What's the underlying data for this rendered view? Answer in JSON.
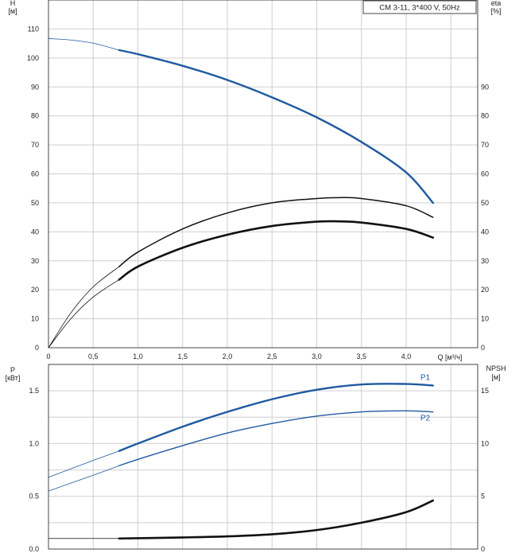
{
  "chart_data": [
    {
      "type": "line",
      "title": "CM 3-11, 3*400 V, 50Hz",
      "ylabel_left": "H",
      "ylabel_left_unit": "[м]",
      "ylabel_right": "eta",
      "ylabel_right_unit": "[%]",
      "xlabel": "Q [м³/ч]",
      "xlim": [
        0,
        4.8
      ],
      "ylim_left": [
        0,
        120
      ],
      "ylim_right": [
        0,
        120
      ],
      "x_ticks": [
        "0",
        "0,5",
        "1,0",
        "1,5",
        "2,0",
        "2,5",
        "3,0",
        "3,5",
        "4,0"
      ],
      "x_tick_values": [
        0,
        0.5,
        1.0,
        1.5,
        2.0,
        2.5,
        3.0,
        3.5,
        4.0
      ],
      "y_ticks_left": [
        "0",
        "10",
        "20",
        "30",
        "40",
        "50",
        "60",
        "70",
        "80",
        "90",
        "100",
        "110"
      ],
      "y_ticks_right": [
        "0",
        "10",
        "20",
        "30",
        "40",
        "50",
        "60",
        "70",
        "80",
        "90"
      ],
      "grid": true,
      "series": [
        {
          "key": "H",
          "color": "#1f5aa0",
          "x": [
            0,
            0.25,
            0.5,
            0.79,
            1.0,
            1.5,
            2.0,
            2.5,
            3.0,
            3.5,
            4.0,
            4.3
          ],
          "y": [
            106.7,
            106.2,
            105.1,
            102.7,
            101.3,
            97.3,
            92.4,
            86.4,
            79.5,
            71.0,
            60.5,
            50.0
          ],
          "solid_from": 0.79
        },
        {
          "key": "eta_hydraulic",
          "color": "#111111",
          "x": [
            0,
            0.25,
            0.5,
            0.79,
            1.0,
            1.5,
            2.0,
            2.5,
            3.0,
            3.25,
            3.5,
            4.0,
            4.3
          ],
          "y": [
            0,
            12,
            21,
            28,
            33,
            41,
            46.5,
            50,
            51.5,
            51.8,
            51.5,
            49,
            45
          ],
          "solid_from": 0.79
        },
        {
          "key": "eta_total",
          "color": "#111111",
          "x": [
            0,
            0.25,
            0.5,
            0.79,
            1.0,
            1.5,
            2.0,
            2.5,
            3.0,
            3.25,
            3.5,
            4.0,
            4.3
          ],
          "y": [
            0,
            10,
            17.5,
            23.5,
            28,
            34.5,
            39,
            42,
            43.5,
            43.6,
            43.2,
            41,
            38
          ],
          "solid_from": 0.79
        }
      ]
    },
    {
      "type": "line",
      "ylabel_left": "P",
      "ylabel_left_unit": "[кВт]",
      "ylabel_right": "NPSH",
      "ylabel_right_unit": "[м]",
      "xlim": [
        0,
        4.8
      ],
      "ylim_left": [
        0,
        1.75
      ],
      "ylim_right": [
        0,
        17.5
      ],
      "y_ticks_left": [
        "0.0",
        "0.5",
        "1.0",
        "1.5"
      ],
      "y_tick_values_left": [
        0,
        0.5,
        1.0,
        1.5
      ],
      "y_ticks_right": [
        "0",
        "5",
        "10",
        "15"
      ],
      "y_tick_values_right": [
        0,
        5,
        10,
        15
      ],
      "grid": true,
      "series": [
        {
          "name": "P1",
          "color": "#1f5aa0",
          "axis": "left",
          "x": [
            0,
            0.5,
            0.79,
            1.0,
            1.5,
            2.0,
            2.5,
            3.0,
            3.5,
            4.0,
            4.3
          ],
          "y": [
            0.68,
            0.84,
            0.93,
            1.0,
            1.16,
            1.3,
            1.42,
            1.51,
            1.56,
            1.565,
            1.55
          ],
          "solid_from": 0.79
        },
        {
          "name": "P2",
          "color": "#1f5aa0",
          "axis": "left",
          "x": [
            0,
            0.5,
            0.79,
            1.0,
            1.5,
            2.0,
            2.5,
            3.0,
            3.5,
            4.0,
            4.3
          ],
          "y": [
            0.55,
            0.7,
            0.79,
            0.85,
            0.98,
            1.1,
            1.19,
            1.26,
            1.3,
            1.31,
            1.3
          ],
          "solid_from": 0.79
        },
        {
          "key": "NPSH",
          "color": "#111111",
          "axis": "right",
          "x": [
            0,
            0.5,
            0.79,
            1.5,
            2.0,
            2.5,
            3.0,
            3.5,
            4.0,
            4.3
          ],
          "y": [
            1.0,
            1.0,
            1.0,
            1.1,
            1.2,
            1.4,
            1.8,
            2.5,
            3.5,
            4.6
          ],
          "solid_from": 0.79
        }
      ]
    }
  ]
}
